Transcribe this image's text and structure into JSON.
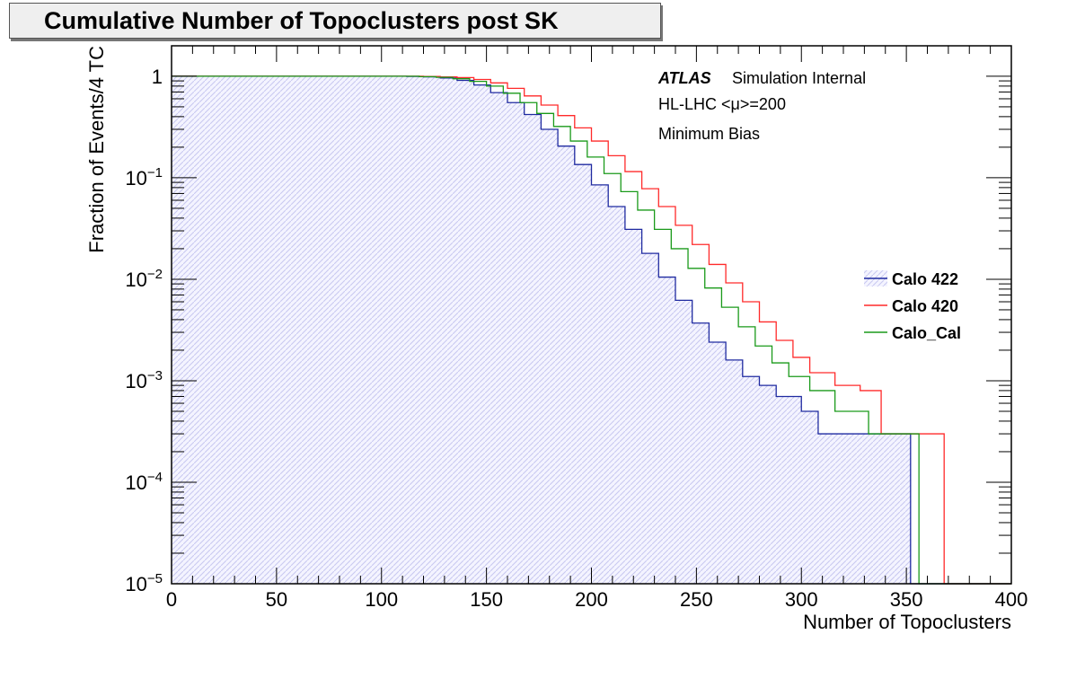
{
  "chart_data": {
    "type": "line",
    "title": "Cumulative Number of Topoclusters post SK",
    "xlabel": "Number of Topoclusters",
    "ylabel": "Fraction of Events/4 TC",
    "xlim": [
      0,
      400
    ],
    "ylim": [
      1e-05,
      2
    ],
    "yscale": "log",
    "grid": false,
    "legend_position": "right",
    "x_ticks": [
      "0",
      "50",
      "100",
      "150",
      "200",
      "250",
      "300",
      "350",
      "400"
    ],
    "y_ticks": [
      {
        "base": "10",
        "exp": "−5",
        "value": 1e-05
      },
      {
        "base": "10",
        "exp": "−4",
        "value": 0.0001
      },
      {
        "base": "10",
        "exp": "−3",
        "value": 0.001
      },
      {
        "base": "10",
        "exp": "−2",
        "value": 0.01
      },
      {
        "base": "10",
        "exp": "−1",
        "value": 0.1
      },
      {
        "base": "1",
        "exp": "",
        "value": 1
      }
    ],
    "annotations": {
      "atlas": "ATLAS",
      "atlas_suffix": "Simulation Internal",
      "line2": "HL-LHC <μ>=200",
      "line3": "Minimum Bias"
    },
    "series": [
      {
        "name": "Calo 422",
        "color": "#1f2aa0",
        "fill": true,
        "points": [
          [
            0,
            1
          ],
          [
            108,
            1
          ],
          [
            112,
            0.995
          ],
          [
            120,
            0.985
          ],
          [
            128,
            0.96
          ],
          [
            136,
            0.91
          ],
          [
            144,
            0.82
          ],
          [
            152,
            0.69
          ],
          [
            160,
            0.55
          ],
          [
            168,
            0.42
          ],
          [
            176,
            0.3
          ],
          [
            184,
            0.205
          ],
          [
            192,
            0.135
          ],
          [
            200,
            0.085
          ],
          [
            208,
            0.052
          ],
          [
            216,
            0.031
          ],
          [
            224,
            0.018
          ],
          [
            232,
            0.0105
          ],
          [
            240,
            0.0062
          ],
          [
            248,
            0.0037
          ],
          [
            256,
            0.0024
          ],
          [
            264,
            0.0016
          ],
          [
            272,
            0.0011
          ],
          [
            280,
            0.0009
          ],
          [
            288,
            0.0007
          ],
          [
            300,
            0.0005
          ],
          [
            308,
            0.0003
          ],
          [
            340,
            0.0003
          ],
          [
            352,
            1e-05
          ],
          [
            400,
            1e-05
          ]
        ]
      },
      {
        "name": "Calo 420",
        "color": "#ff2a2a",
        "fill": false,
        "points": [
          [
            0,
            1
          ],
          [
            112,
            1
          ],
          [
            120,
            0.995
          ],
          [
            128,
            0.985
          ],
          [
            136,
            0.97
          ],
          [
            144,
            0.93
          ],
          [
            152,
            0.86
          ],
          [
            160,
            0.76
          ],
          [
            168,
            0.64
          ],
          [
            176,
            0.52
          ],
          [
            184,
            0.41
          ],
          [
            192,
            0.31
          ],
          [
            200,
            0.23
          ],
          [
            208,
            0.165
          ],
          [
            216,
            0.115
          ],
          [
            224,
            0.078
          ],
          [
            232,
            0.052
          ],
          [
            240,
            0.034
          ],
          [
            248,
            0.022
          ],
          [
            256,
            0.014
          ],
          [
            264,
            0.0092
          ],
          [
            272,
            0.006
          ],
          [
            280,
            0.0038
          ],
          [
            288,
            0.0025
          ],
          [
            296,
            0.0017
          ],
          [
            304,
            0.0012
          ],
          [
            316,
            0.0009
          ],
          [
            328,
            0.0008
          ],
          [
            338,
            0.0003
          ],
          [
            352,
            0.0003
          ],
          [
            368,
            1e-05
          ],
          [
            400,
            1e-05
          ]
        ]
      },
      {
        "name": "Calo_Cal",
        "color": "#1a9a1a",
        "fill": false,
        "points": [
          [
            0,
            1
          ],
          [
            110,
            1
          ],
          [
            118,
            0.99
          ],
          [
            126,
            0.975
          ],
          [
            134,
            0.945
          ],
          [
            142,
            0.89
          ],
          [
            150,
            0.8
          ],
          [
            158,
            0.68
          ],
          [
            166,
            0.55
          ],
          [
            174,
            0.43
          ],
          [
            182,
            0.32
          ],
          [
            190,
            0.23
          ],
          [
            198,
            0.16
          ],
          [
            206,
            0.11
          ],
          [
            214,
            0.073
          ],
          [
            222,
            0.048
          ],
          [
            230,
            0.031
          ],
          [
            238,
            0.02
          ],
          [
            246,
            0.0128
          ],
          [
            254,
            0.0082
          ],
          [
            262,
            0.0053
          ],
          [
            270,
            0.0034
          ],
          [
            278,
            0.0022
          ],
          [
            286,
            0.0015
          ],
          [
            294,
            0.0011
          ],
          [
            304,
            0.0008
          ],
          [
            316,
            0.0005
          ],
          [
            332,
            0.0003
          ],
          [
            348,
            0.0003
          ],
          [
            356,
            1e-05
          ],
          [
            400,
            1e-05
          ]
        ]
      }
    ]
  }
}
